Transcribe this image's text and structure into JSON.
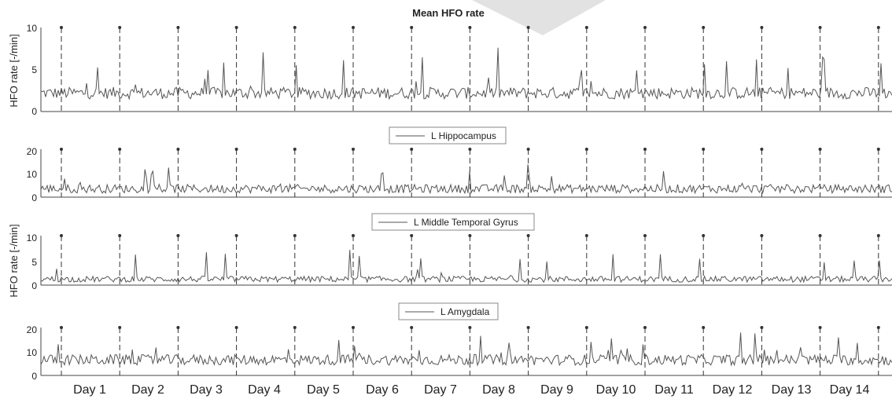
{
  "chart_data": [
    {
      "type": "line",
      "title": "Mean HFO rate",
      "ylabel": "HFO rate [-/min]",
      "ylim": [
        0,
        10
      ],
      "yticks": [
        0,
        5,
        10
      ],
      "legend": "",
      "baseline": 2.2,
      "noise": 0.7,
      "spikes": 5,
      "color": "#555555"
    },
    {
      "type": "line",
      "title": "",
      "ylabel": "",
      "ylim": [
        0,
        20
      ],
      "yticks": [
        0,
        10,
        20
      ],
      "legend": "L Hippocampus",
      "legend_position": "top-center",
      "baseline": 3.5,
      "noise": 1.8,
      "spikes": 9,
      "color": "#555555"
    },
    {
      "type": "line",
      "title": "",
      "ylabel": "HFO rate [-/min]",
      "ylim": [
        0,
        10
      ],
      "yticks": [
        0,
        5,
        10
      ],
      "legend": "L Middle Temporal Gyrus",
      "legend_position": "top-center",
      "baseline": 1.2,
      "noise": 0.6,
      "spikes": 6,
      "color": "#555555"
    },
    {
      "type": "line",
      "title": "",
      "ylabel": "",
      "ylim": [
        0,
        20
      ],
      "yticks": [
        0,
        10,
        20
      ],
      "legend": "L Amygdala",
      "legend_position": "top-center",
      "baseline": 6.5,
      "noise": 2.2,
      "spikes": 12,
      "color": "#555555"
    }
  ],
  "x_axis": {
    "tick_labels": [
      "Day 1",
      "Day 2",
      "Day 3",
      "Day 4",
      "Day 5",
      "Day 6",
      "Day 7",
      "Day 8",
      "Day 9",
      "Day 10",
      "Day 11",
      "Day 12",
      "Day 13",
      "Day 14"
    ],
    "day_count": 14
  },
  "colors": {
    "line": "#555555",
    "marker": "#333333",
    "axis": "#444444",
    "watermark": "#d9d9d9"
  }
}
